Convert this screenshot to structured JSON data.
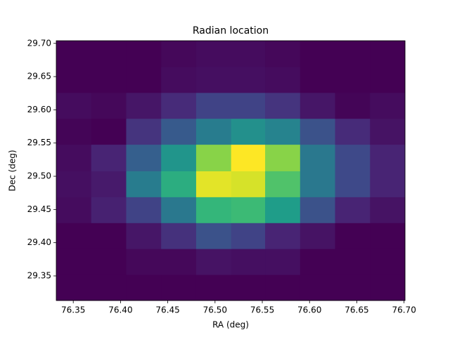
{
  "chart_data": {
    "type": "heatmap",
    "title": "Radian location",
    "x_label": "RA (deg)",
    "y_label": "Dec (deg)",
    "colormap": "viridis",
    "xbins": [
      76.332,
      76.369,
      76.406,
      76.443,
      76.48,
      76.517,
      76.553,
      76.59,
      76.627,
      76.664,
      76.701
    ],
    "ybins": [
      29.313,
      29.352,
      29.391,
      29.43,
      29.469,
      29.508,
      29.548,
      29.587,
      29.626,
      29.665,
      29.704
    ],
    "values": [
      [
        0,
        0,
        0,
        0,
        0,
        0,
        0,
        0,
        0,
        0
      ],
      [
        0,
        0,
        2,
        2,
        5,
        4,
        4,
        0,
        0,
        0
      ],
      [
        0,
        0,
        6,
        14,
        25,
        20,
        10,
        5,
        0,
        0
      ],
      [
        3,
        9,
        20,
        40,
        66,
        68,
        55,
        25,
        10,
        5
      ],
      [
        4,
        7,
        42,
        62,
        96,
        94,
        72,
        40,
        22,
        10
      ],
      [
        3,
        10,
        30,
        52,
        82,
        100,
        82,
        40,
        22,
        10
      ],
      [
        1,
        0,
        15,
        28,
        42,
        50,
        45,
        25,
        12,
        5
      ],
      [
        3,
        2,
        6,
        12,
        20,
        20,
        15,
        6,
        1,
        3
      ],
      [
        0,
        0,
        0,
        3,
        4,
        4,
        3,
        0,
        0,
        0
      ],
      [
        0,
        0,
        0,
        2,
        3,
        3,
        2,
        0,
        0,
        0
      ]
    ],
    "xlim": [
      76.332,
      76.701
    ],
    "ylim": [
      29.313,
      29.704
    ],
    "xticks": [
      76.35,
      {
        "value": 76.4,
        "label": "76.40"
      },
      76.45,
      {
        "value": 76.5,
        "label": "76.50"
      },
      76.55,
      {
        "value": 76.6,
        "label": "76.60"
      },
      76.65,
      {
        "value": 76.7,
        "label": "76.70"
      }
    ],
    "yticks": [
      29.35,
      {
        "value": 29.4,
        "label": "29.40"
      },
      29.45,
      {
        "value": 29.5,
        "label": "29.50"
      },
      29.55,
      {
        "value": 29.6,
        "label": "29.60"
      },
      29.65,
      {
        "value": 29.7,
        "label": "29.70"
      }
    ]
  }
}
